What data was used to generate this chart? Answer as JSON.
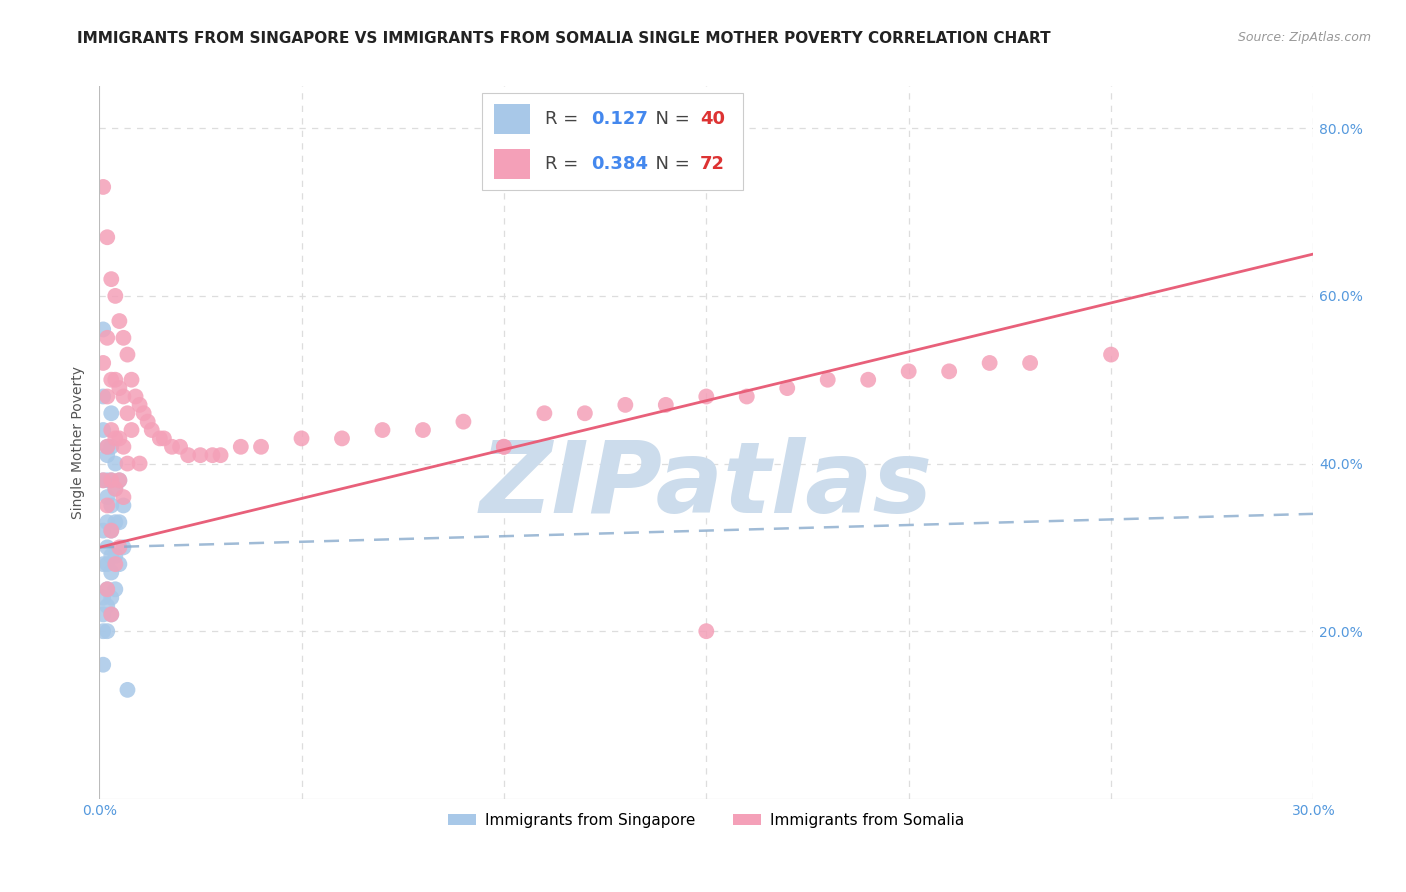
{
  "title": "IMMIGRANTS FROM SINGAPORE VS IMMIGRANTS FROM SOMALIA SINGLE MOTHER POVERTY CORRELATION CHART",
  "source": "Source: ZipAtlas.com",
  "ylabel": "Single Mother Poverty",
  "xlim": [
    0.0,
    0.3
  ],
  "ylim": [
    0.0,
    0.85
  ],
  "singapore_color": "#a8c8e8",
  "somalia_color": "#f4a0b8",
  "singapore_line_color": "#88aacc",
  "somalia_line_color": "#e8607a",
  "singapore_R": 0.127,
  "singapore_N": 40,
  "somalia_R": 0.384,
  "somalia_N": 72,
  "watermark": "ZIPatlas",
  "watermark_color": "#ccdcec",
  "grid_color": "#dddddd",
  "title_color": "#222222",
  "axis_label_color": "#555555",
  "tick_color": "#5599dd",
  "singapore_x": [
    0.001,
    0.001,
    0.001,
    0.001,
    0.001,
    0.001,
    0.001,
    0.001,
    0.001,
    0.001,
    0.002,
    0.002,
    0.002,
    0.002,
    0.002,
    0.002,
    0.002,
    0.002,
    0.002,
    0.002,
    0.003,
    0.003,
    0.003,
    0.003,
    0.003,
    0.003,
    0.003,
    0.003,
    0.003,
    0.004,
    0.004,
    0.004,
    0.004,
    0.004,
    0.005,
    0.005,
    0.005,
    0.006,
    0.006,
    0.007
  ],
  "singapore_y": [
    0.56,
    0.48,
    0.44,
    0.38,
    0.32,
    0.28,
    0.24,
    0.22,
    0.2,
    0.16,
    0.42,
    0.41,
    0.38,
    0.36,
    0.33,
    0.3,
    0.28,
    0.25,
    0.23,
    0.2,
    0.46,
    0.42,
    0.38,
    0.35,
    0.32,
    0.29,
    0.27,
    0.24,
    0.22,
    0.4,
    0.37,
    0.33,
    0.29,
    0.25,
    0.38,
    0.33,
    0.28,
    0.35,
    0.3,
    0.13
  ],
  "somalia_x": [
    0.001,
    0.001,
    0.001,
    0.002,
    0.002,
    0.002,
    0.002,
    0.002,
    0.002,
    0.003,
    0.003,
    0.003,
    0.003,
    0.003,
    0.003,
    0.004,
    0.004,
    0.004,
    0.004,
    0.004,
    0.005,
    0.005,
    0.005,
    0.005,
    0.005,
    0.006,
    0.006,
    0.006,
    0.006,
    0.007,
    0.007,
    0.007,
    0.008,
    0.008,
    0.009,
    0.01,
    0.01,
    0.011,
    0.012,
    0.013,
    0.015,
    0.016,
    0.018,
    0.02,
    0.022,
    0.025,
    0.028,
    0.03,
    0.035,
    0.04,
    0.05,
    0.06,
    0.07,
    0.08,
    0.09,
    0.1,
    0.11,
    0.12,
    0.13,
    0.14,
    0.15,
    0.16,
    0.17,
    0.18,
    0.19,
    0.2,
    0.21,
    0.22,
    0.23,
    0.25,
    0.1,
    0.15
  ],
  "somalia_y": [
    0.73,
    0.52,
    0.38,
    0.67,
    0.55,
    0.48,
    0.42,
    0.35,
    0.25,
    0.62,
    0.5,
    0.44,
    0.38,
    0.32,
    0.22,
    0.6,
    0.5,
    0.43,
    0.37,
    0.28,
    0.57,
    0.49,
    0.43,
    0.38,
    0.3,
    0.55,
    0.48,
    0.42,
    0.36,
    0.53,
    0.46,
    0.4,
    0.5,
    0.44,
    0.48,
    0.47,
    0.4,
    0.46,
    0.45,
    0.44,
    0.43,
    0.43,
    0.42,
    0.42,
    0.41,
    0.41,
    0.41,
    0.41,
    0.42,
    0.42,
    0.43,
    0.43,
    0.44,
    0.44,
    0.45,
    0.42,
    0.46,
    0.46,
    0.47,
    0.47,
    0.48,
    0.48,
    0.49,
    0.5,
    0.5,
    0.51,
    0.51,
    0.52,
    0.52,
    0.53,
    0.42,
    0.2
  ]
}
